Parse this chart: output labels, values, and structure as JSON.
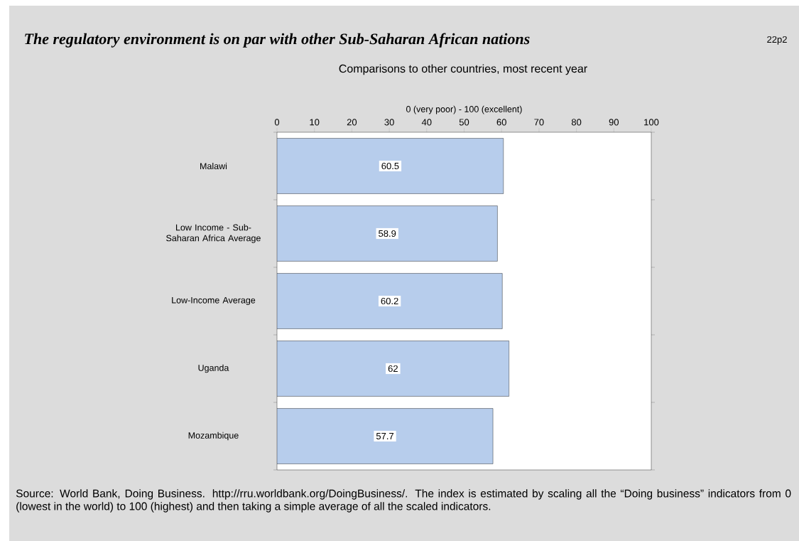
{
  "chart_data": {
    "type": "bar",
    "orientation": "horizontal",
    "title": "The regulatory environment is on par with other Sub-Saharan African nations",
    "subtitle": "Comparisons to other countries, most recent year",
    "xlabel": "0 (very poor) - 100 (excellent)",
    "categories": [
      "Malawi",
      "Low Income - Sub-Saharan Africa Average",
      "Low-Income Average",
      "Uganda",
      "Mozambique"
    ],
    "values": [
      60.5,
      58.9,
      60.2,
      62,
      57.7
    ],
    "color": "#b7cdec",
    "data_labels": true,
    "xlim": [
      0,
      100
    ],
    "xticks": [
      0,
      10,
      20,
      30,
      40,
      50,
      60,
      70,
      80,
      90,
      100
    ],
    "annotations": [
      "22p2",
      "Source: World Bank, Doing Business. http://rru.worldbank.org/DoingBusiness/. The index is estimated by scaling all the “Doing business” indicators from 0 (lowest in the world) to 100 (highest) and then taking a simple average of all the scaled indicators."
    ]
  }
}
